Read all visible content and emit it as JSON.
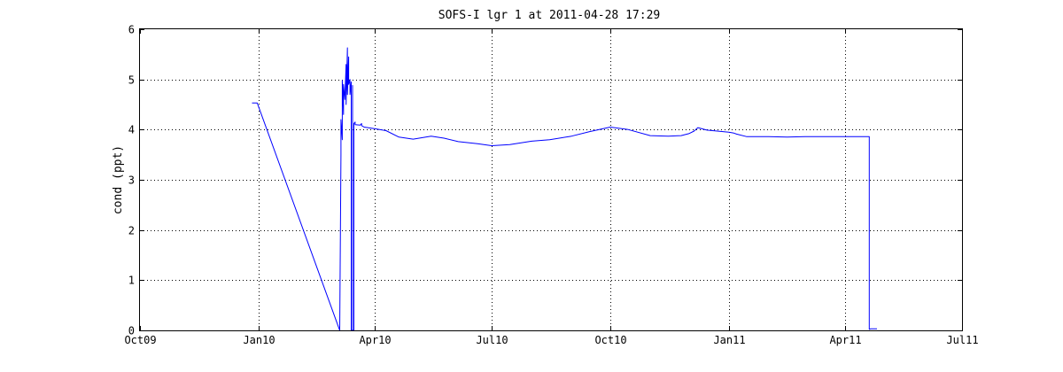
{
  "chart_data": {
    "type": "line",
    "title": "SOFS-I lgr 1 at 2011-04-28 17:29",
    "xlabel": "",
    "ylabel": "cond (ppt)",
    "xlim": [
      "2009-10-01",
      "2011-07-01"
    ],
    "ylim": [
      0,
      6
    ],
    "grid": true,
    "x_ticks": [
      {
        "date": "2009-10-01",
        "label": "Oct09"
      },
      {
        "date": "2010-01-01",
        "label": "Jan10"
      },
      {
        "date": "2010-04-01",
        "label": "Apr10"
      },
      {
        "date": "2010-07-01",
        "label": "Jul10"
      },
      {
        "date": "2010-10-01",
        "label": "Oct10"
      },
      {
        "date": "2011-01-01",
        "label": "Jan11"
      },
      {
        "date": "2011-04-01",
        "label": "Apr11"
      },
      {
        "date": "2011-07-01",
        "label": "Jul11"
      }
    ],
    "y_ticks": [
      0,
      1,
      2,
      3,
      4,
      5,
      6
    ],
    "series": [
      {
        "color": "#0000ff",
        "x": [
          "2009-12-27",
          "2009-12-31",
          "2010-03-05",
          "2010-03-06",
          "2010-03-06",
          "2010-03-07",
          "2010-03-07",
          "2010-03-08",
          "2010-03-08",
          "2010-03-09",
          "2010-03-10",
          "2010-03-10",
          "2010-03-11",
          "2010-03-11",
          "2010-03-12",
          "2010-03-12",
          "2010-03-13",
          "2010-03-13",
          "2010-03-14",
          "2010-03-14",
          "2010-03-15",
          "2010-03-15",
          "2010-03-15",
          "2010-03-16",
          "2010-03-16",
          "2010-03-17",
          "2010-03-17",
          "2010-03-21",
          "2010-03-22",
          "2010-03-22",
          "2010-03-24",
          "2010-04-01",
          "2010-04-10",
          "2010-04-20",
          "2010-05-01",
          "2010-05-15",
          "2010-05-25",
          "2010-06-05",
          "2010-06-20",
          "2010-07-01",
          "2010-07-15",
          "2010-08-01",
          "2010-08-15",
          "2010-09-01",
          "2010-09-15",
          "2010-10-01",
          "2010-10-15",
          "2010-11-01",
          "2010-11-15",
          "2010-11-25",
          "2010-12-01",
          "2010-12-05",
          "2010-12-08",
          "2010-12-15",
          "2011-01-01",
          "2011-01-05",
          "2011-01-07",
          "2011-01-15",
          "2011-02-01",
          "2011-02-15",
          "2011-03-01",
          "2011-03-15",
          "2011-04-01",
          "2011-04-10",
          "2011-04-20",
          "2011-04-20",
          "2011-04-21",
          "2011-04-26"
        ],
        "y": [
          4.53,
          4.53,
          0,
          3.5,
          4.2,
          3.8,
          4.98,
          4.3,
          4.9,
          4.6,
          5.3,
          4.5,
          5.63,
          4.7,
          5.45,
          4.9,
          5.0,
          4.7,
          4.95,
          0,
          0,
          4.88,
          0,
          0,
          4.12,
          4.15,
          4.1,
          4.09,
          4.12,
          4.08,
          4.05,
          4.02,
          3.98,
          3.85,
          3.81,
          3.87,
          3.83,
          3.76,
          3.72,
          3.68,
          3.7,
          3.77,
          3.8,
          3.87,
          3.96,
          4.05,
          4.0,
          3.88,
          3.87,
          3.88,
          3.92,
          3.97,
          4.04,
          3.99,
          3.95,
          3.93,
          3.91,
          3.86,
          3.86,
          3.85,
          3.86,
          3.86,
          3.86,
          3.86,
          3.86,
          0.02,
          0.03,
          0.03
        ]
      }
    ]
  }
}
